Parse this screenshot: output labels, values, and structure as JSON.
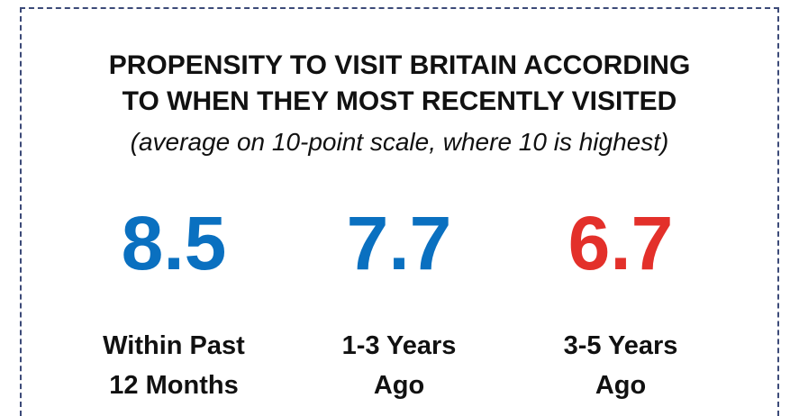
{
  "header": {
    "title": [
      "PROPENSITY TO VISIT BRITAIN ACCORDING",
      "TO WHEN THEY MOST RECENTLY VISITED"
    ],
    "subtitle": "(average on 10-point scale, where 10 is highest)"
  },
  "items": [
    {
      "value": 8.5,
      "color": "#0a70c0",
      "label": [
        "Within Past",
        "12 Months"
      ]
    },
    {
      "value": 7.7,
      "color": "#0a70c0",
      "label": [
        "1-3 Years",
        "Ago"
      ]
    },
    {
      "value": 6.7,
      "color": "#e3302a",
      "label": [
        "3-5 Years",
        "Ago"
      ]
    }
  ]
}
